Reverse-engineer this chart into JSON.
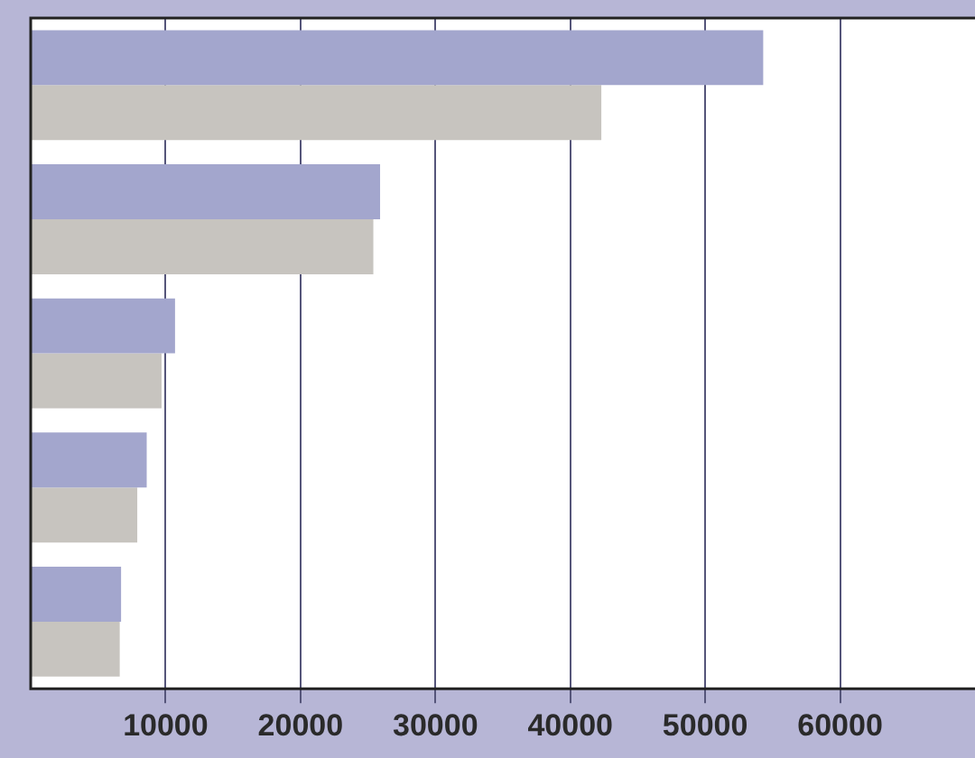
{
  "chart_data": {
    "type": "bar",
    "orientation": "horizontal",
    "categories": [
      null,
      null,
      null,
      null,
      null
    ],
    "series": [
      {
        "color": "#a3a6cd",
        "values": [
          54300,
          25900,
          10700,
          8600,
          6700
        ]
      },
      {
        "color": "#c7c4bf",
        "values": [
          42300,
          25400,
          9700,
          7900,
          6600
        ]
      }
    ],
    "xlim": [
      0,
      70000
    ],
    "xticks": [
      10000,
      20000,
      30000,
      40000,
      50000,
      60000
    ],
    "grid": "x",
    "tick_labels": "x"
  }
}
